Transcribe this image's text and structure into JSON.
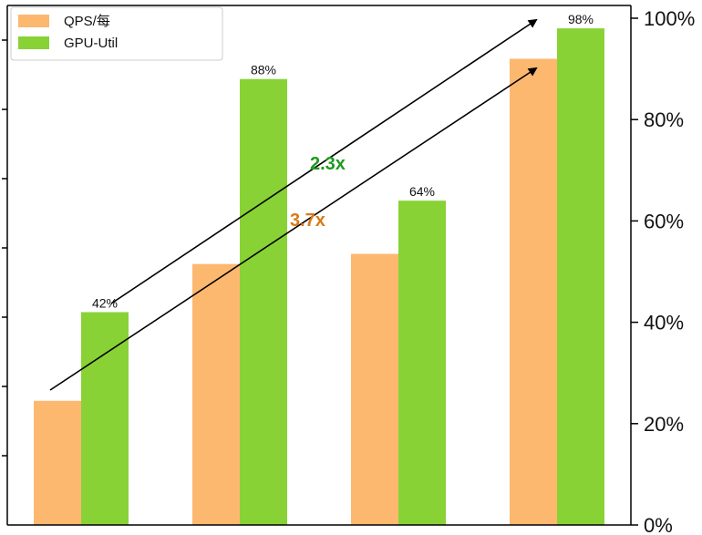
{
  "chart_data": {
    "type": "bar",
    "categories": [
      "",
      "",
      "",
      ""
    ],
    "series": [
      {
        "name": "QPS/每",
        "color": "#FDB870",
        "values": [
          0.245,
          0.515,
          0.535,
          0.92
        ]
      },
      {
        "name": "GPU-Util",
        "color": "#88D236",
        "values": [
          0.42,
          0.88,
          0.64,
          0.98
        ],
        "labels": [
          "42%",
          "88%",
          "64%",
          "98%"
        ]
      }
    ],
    "right_axis": {
      "ylim": [
        0,
        1
      ],
      "ticks": [
        0,
        0.2,
        0.4,
        0.6,
        0.8,
        1.0
      ],
      "tick_labels": [
        "0%",
        "20%",
        "40%",
        "60%",
        "80%",
        "100%"
      ]
    },
    "legend": {
      "placement": "top-left"
    },
    "grid": false,
    "annotations": [
      {
        "text": "2.3x",
        "color": "#1E9A1E",
        "from_category": 0,
        "to_category": 3,
        "series": "GPU-Util"
      },
      {
        "text": "3.7x",
        "color": "#D97A1A",
        "from_category": 0,
        "to_category": 3,
        "series": "QPS/每"
      }
    ]
  }
}
